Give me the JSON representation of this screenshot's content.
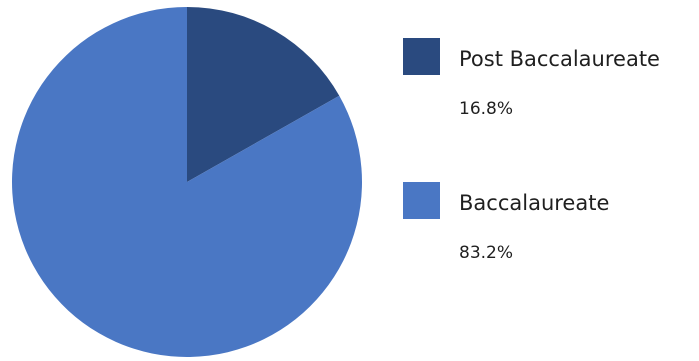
{
  "chart_data": {
    "type": "pie",
    "title": "",
    "slices": [
      {
        "label": "Post Baccalaureate",
        "value": 16.8,
        "display": "16.8%",
        "color": "#2a4a7f"
      },
      {
        "label": "Baccalaureate",
        "value": 83.2,
        "display": "83.2%",
        "color": "#4a77c4"
      }
    ],
    "start_angle": "12 o'clock",
    "direction": "clockwise",
    "legend_position": "right"
  }
}
